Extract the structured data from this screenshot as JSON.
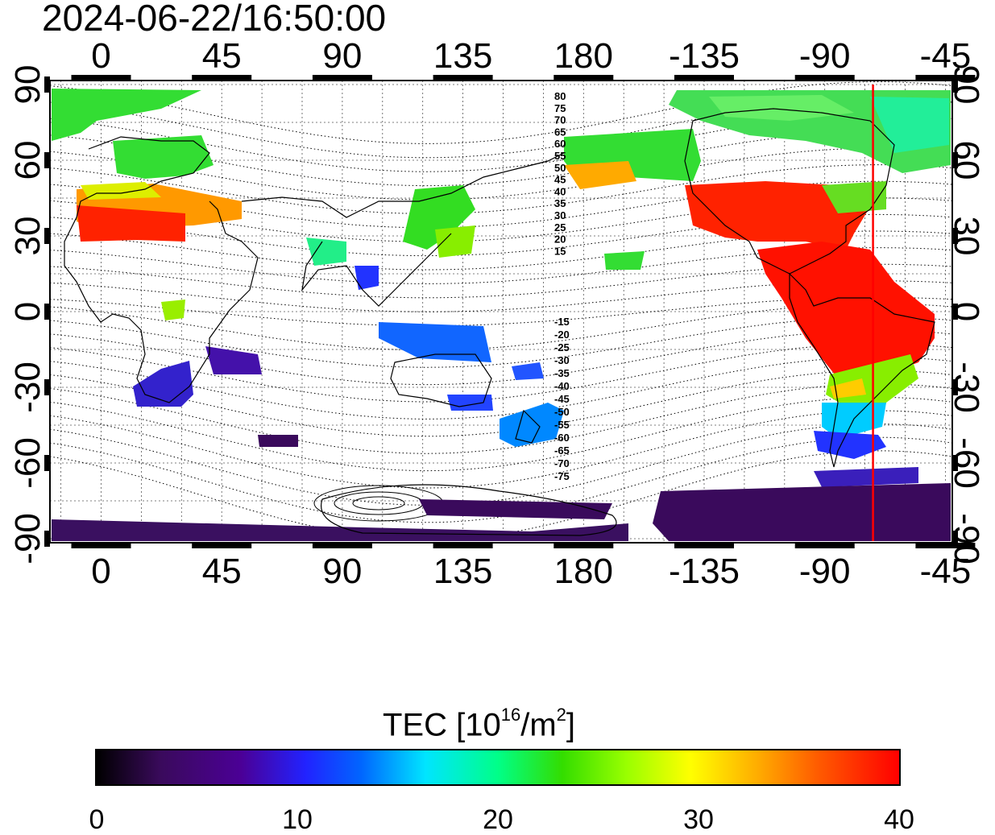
{
  "title": "2024-06-22/16:50:00",
  "map": {
    "x_top_ticks": [
      "0",
      "45",
      "90",
      "135",
      "180",
      "-135",
      "-90",
      "-45"
    ],
    "x_bottom_ticks": [
      "0",
      "45",
      "90",
      "135",
      "180",
      "-135",
      "-90",
      "-45"
    ],
    "y_left_ticks": [
      "90",
      "60",
      "30",
      "0",
      "-30",
      "-60",
      "-90"
    ],
    "y_right_ticks": [
      "90",
      "60",
      "30",
      "0",
      "-30",
      "-60",
      "-90"
    ],
    "contour_labels_north": [
      "80",
      "75",
      "70",
      "65",
      "60",
      "55",
      "50",
      "45",
      "40",
      "35",
      "30",
      "25",
      "20",
      "15"
    ],
    "contour_labels_south": [
      "-15",
      "-20",
      "-25",
      "-30",
      "-35",
      "-40",
      "-45",
      "-50",
      "-55",
      "-60",
      "-65",
      "-70",
      "-75"
    ],
    "terminator_longitude": -72,
    "terminator_color": "#ff0000"
  },
  "colorbar": {
    "title_prefix": "TEC  [10",
    "title_exp": "16",
    "title_mid": "/m",
    "title_exp2": "2",
    "title_suffix": "]",
    "min": 0,
    "max": 40,
    "ticks": [
      "0",
      "10",
      "20",
      "30",
      "40"
    ]
  }
}
